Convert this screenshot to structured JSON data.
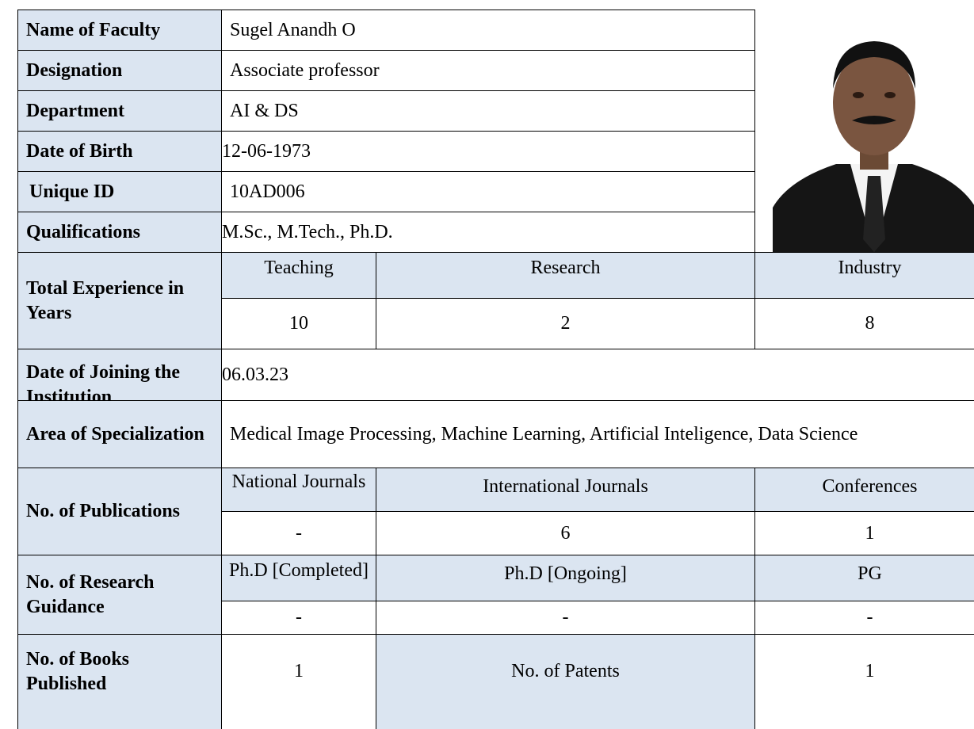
{
  "profile": {
    "rows": [
      {
        "label": "Name of Faculty",
        "value": "Sugel Anandh O"
      },
      {
        "label": "Designation",
        "value": "Associate professor"
      },
      {
        "label": "Department",
        "value": "AI & DS"
      },
      {
        "label": "Date of Birth",
        "value": "12-06-1973"
      },
      {
        "label": "Unique ID",
        "value": "10AD006"
      },
      {
        "label": "Qualifications",
        "value": "M.Sc., M.Tech., Ph.D."
      }
    ],
    "experience": {
      "label": "Total Experience in Years",
      "headers": [
        "Teaching",
        "Research",
        "Industry"
      ],
      "values": [
        "10",
        "2",
        "8"
      ]
    },
    "joining": {
      "label": "Date of Joining the Institution",
      "value": "06.03.23"
    },
    "specialization": {
      "label": "Area of Specialization",
      "value": "Medical Image Processing, Machine Learning, Artificial Inteligence, Data Science"
    },
    "publications": {
      "label": "No. of Publications",
      "headers": [
        "National Journals",
        "International Journals",
        "Conferences"
      ],
      "values": [
        "-",
        "6",
        "1"
      ]
    },
    "guidance": {
      "label": "No. of Research Guidance",
      "headers": [
        "Ph.D [Completed]",
        "Ph.D [Ongoing]",
        "PG"
      ],
      "values": [
        "-",
        "-",
        "-"
      ]
    },
    "books": {
      "label": "No. of Books Published",
      "value": "1",
      "patents_label": "No. of Patents",
      "patents_value": "1"
    }
  }
}
